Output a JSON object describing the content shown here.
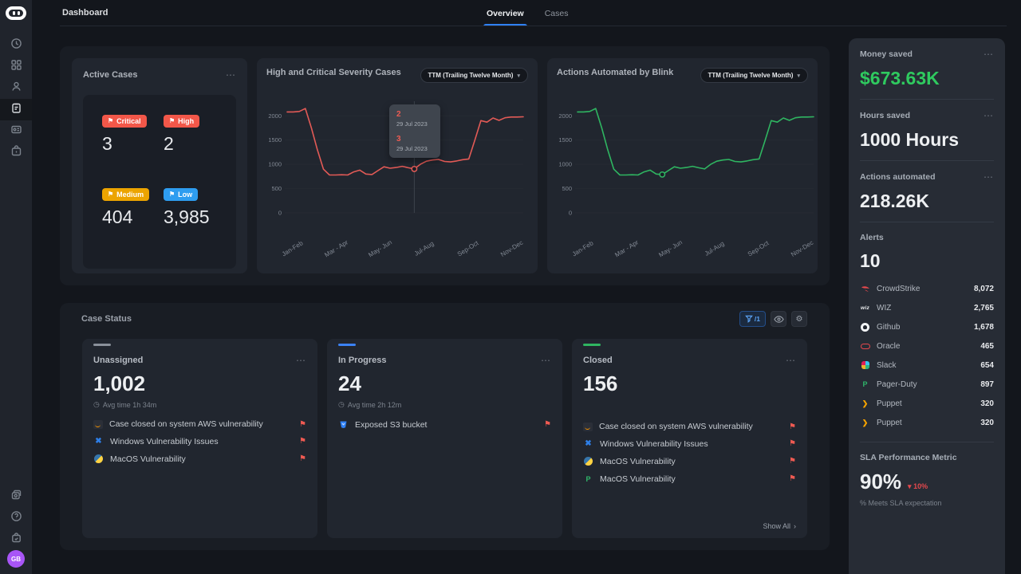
{
  "ui": {
    "ellipsis": "⋯",
    "caret": "▾",
    "flag": "⚑",
    "clock": "◷",
    "chevron": "›",
    "gear": "⚙",
    "help": "?",
    "delta_down": "▾"
  },
  "topbar": {
    "title": "Dashboard",
    "tabs": [
      {
        "label": "Overview"
      },
      {
        "label": "Cases"
      }
    ]
  },
  "sidebar": {
    "avatar_initials": "GB"
  },
  "active_cases": {
    "title": "Active Cases",
    "stats": [
      {
        "label": "Critical",
        "value": "3"
      },
      {
        "label": "High",
        "value": "2"
      },
      {
        "label": "Medium",
        "value": "404"
      },
      {
        "label": "Low",
        "value": "3,985"
      }
    ]
  },
  "chart_data": [
    {
      "type": "line",
      "title": "High and Critical Severity Cases",
      "range_label": "TTM (Trailing Twelve Month)",
      "color": "#e25a56",
      "categories": [
        "Jan-Feb",
        "Mar - Apr",
        "May- Jun",
        "Jul-Aug",
        "Sep-Oct",
        "Nov-Dec"
      ],
      "yticks": [
        0,
        500,
        1000,
        1500,
        2000
      ],
      "ylim": [
        0,
        2300
      ],
      "values": [
        2080,
        2080,
        2090,
        2150,
        1750,
        1300,
        900,
        780,
        780,
        785,
        780,
        845,
        880,
        800,
        790,
        870,
        950,
        920,
        935,
        960,
        930,
        905,
        1000,
        1065,
        1090,
        1100,
        1060,
        1050,
        1070,
        1095,
        1110,
        1500,
        1900,
        1870,
        1955,
        1905,
        1960,
        1975,
        1975,
        1980
      ],
      "marker_index": 21,
      "crosshair": true,
      "tooltip": {
        "entries": [
          {
            "value": "2",
            "date": "29 Jul 2023"
          },
          {
            "value": "3",
            "date": "29 Jul 2023"
          }
        ]
      }
    },
    {
      "type": "line",
      "title": "Actions Automated by Blink",
      "range_label": "TTM (Trailing Twelve Month)",
      "color": "#2fb561",
      "categories": [
        "Jan-Feb",
        "Mar - Apr",
        "May- Jun",
        "Jul-Aug",
        "Sep-Oct",
        "Nov-Dec"
      ],
      "yticks": [
        0,
        500,
        1000,
        1500,
        2000
      ],
      "ylim": [
        0,
        2300
      ],
      "values": [
        2080,
        2080,
        2090,
        2150,
        1750,
        1300,
        900,
        780,
        780,
        785,
        780,
        845,
        880,
        800,
        790,
        870,
        950,
        920,
        935,
        960,
        930,
        905,
        1000,
        1065,
        1090,
        1100,
        1060,
        1050,
        1070,
        1095,
        1110,
        1500,
        1900,
        1870,
        1955,
        1905,
        1960,
        1975,
        1975,
        1980
      ],
      "marker_index": 14,
      "crosshair": false
    }
  ],
  "case_status": {
    "title": "Case Status",
    "filter_count": "/1",
    "columns": [
      {
        "name": "Unassigned",
        "count": "1,002",
        "avg_time": "Avg time 1h 34m",
        "items": [
          {
            "icon": "aws",
            "label": "Case closed on system AWS vulnerability"
          },
          {
            "icon": "windows",
            "label": "Windows Vulnerability Issues"
          },
          {
            "icon": "macos",
            "label": "MacOS Vulnerability"
          }
        ]
      },
      {
        "name": "In Progress",
        "count": "24",
        "avg_time": "Avg time 2h 12m",
        "items": [
          {
            "icon": "s3",
            "label": "Exposed S3 bucket"
          }
        ]
      },
      {
        "name": "Closed",
        "count": "156",
        "items": [
          {
            "icon": "aws",
            "label": "Case closed on system AWS vulnerability"
          },
          {
            "icon": "windows",
            "label": "Windows Vulnerability Issues"
          },
          {
            "icon": "macos",
            "label": "MacOS Vulnerability"
          },
          {
            "icon": "pagerduty",
            "label": "MacOS Vulnerability"
          }
        ],
        "show_all": "Show All"
      }
    ]
  },
  "right_panel": {
    "metrics": [
      {
        "label": "Money saved",
        "value": "$673.63K"
      },
      {
        "label": "Hours saved",
        "value": "1000 Hours"
      },
      {
        "label": "Actions automated",
        "value": "218.26K"
      }
    ],
    "alerts": {
      "label": "Alerts",
      "count": "10",
      "items": [
        {
          "icon": "crowdstrike",
          "name": "CrowdStrike",
          "value": "8,072"
        },
        {
          "icon": "wiz",
          "name": "WIZ",
          "value": "2,765"
        },
        {
          "icon": "github",
          "name": "Github",
          "value": "1,678"
        },
        {
          "icon": "oracle",
          "name": "Oracle",
          "value": "465"
        },
        {
          "icon": "slack",
          "name": "Slack",
          "value": "654"
        },
        {
          "icon": "pagerduty",
          "name": "Pager-Duty",
          "value": "897"
        },
        {
          "icon": "puppet",
          "name": "Puppet",
          "value": "320"
        },
        {
          "icon": "puppet",
          "name": "Puppet",
          "value": "320"
        }
      ]
    },
    "sla": {
      "label": "SLA Performance Metric",
      "value": "90%",
      "delta": "10%",
      "caption": "% Meets SLA expectation"
    }
  }
}
